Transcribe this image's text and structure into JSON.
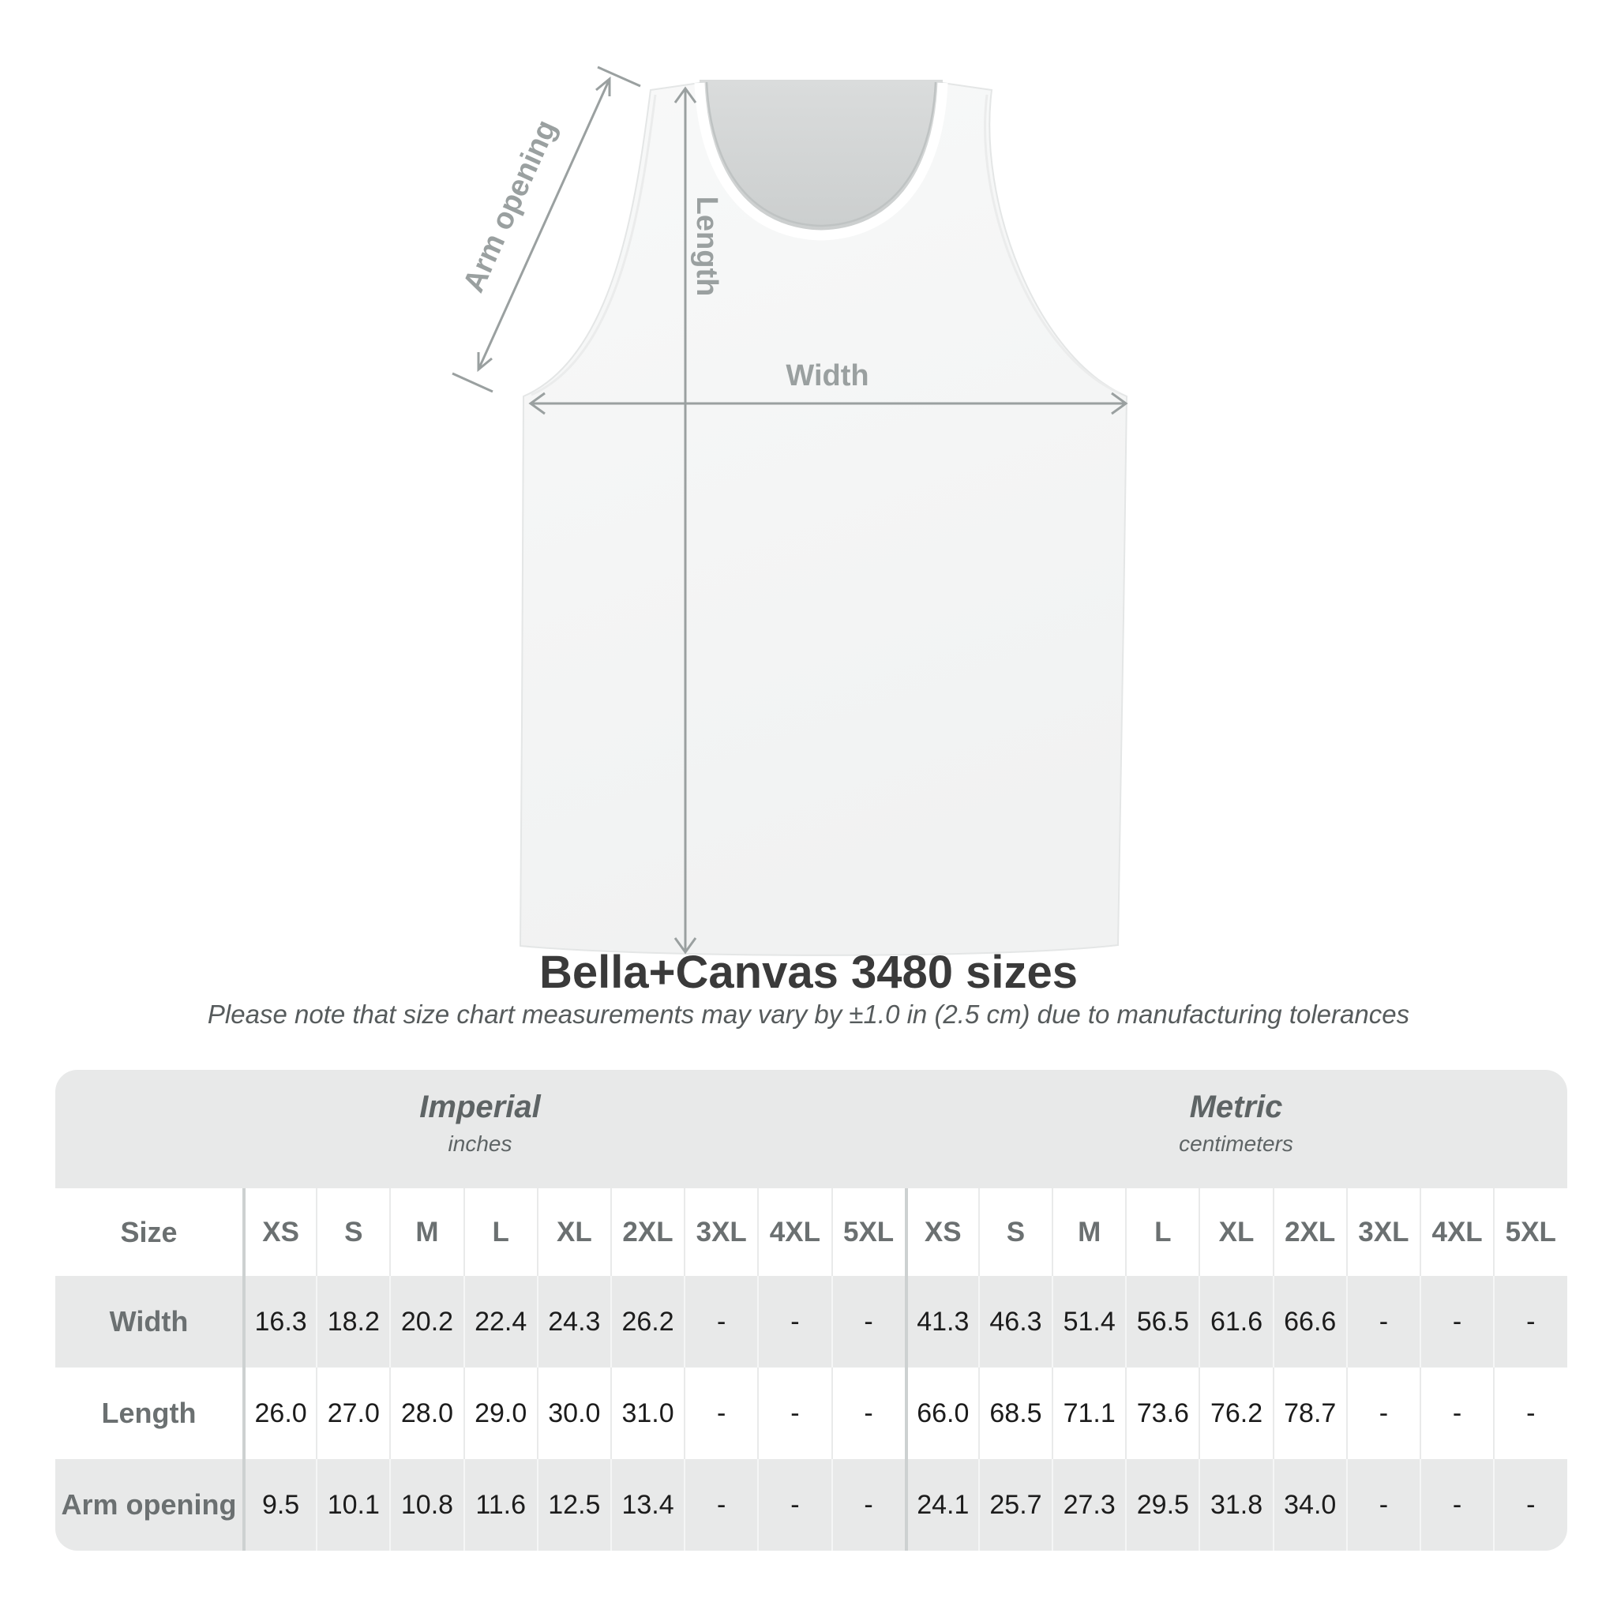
{
  "illustration": {
    "arm_opening_label": "Arm opening",
    "length_label": "Length",
    "width_label": "Width"
  },
  "header": {
    "title": "Bella+Canvas 3480 sizes",
    "subtitle": "Please note that size chart measurements may vary by ±1.0 in (2.5 cm) due to manufacturing tolerances"
  },
  "chart_data": {
    "type": "table",
    "title": "Bella+Canvas 3480 sizes",
    "note": "Please note that size chart measurements may vary by ±1.0 in (2.5 cm) due to manufacturing tolerances",
    "size_header": "Size",
    "unit_groups": [
      {
        "name": "Imperial",
        "unit": "inches"
      },
      {
        "name": "Metric",
        "unit": "centimeters"
      }
    ],
    "sizes": [
      "XS",
      "S",
      "M",
      "L",
      "XL",
      "2XL",
      "3XL",
      "4XL",
      "5XL"
    ],
    "rows": [
      {
        "label": "Width",
        "imperial": [
          "16.3",
          "18.2",
          "20.2",
          "22.4",
          "24.3",
          "26.2",
          "-",
          "-",
          "-"
        ],
        "metric": [
          "41.3",
          "46.3",
          "51.4",
          "56.5",
          "61.6",
          "66.6",
          "-",
          "-",
          "-"
        ]
      },
      {
        "label": "Length",
        "imperial": [
          "26.0",
          "27.0",
          "28.0",
          "29.0",
          "30.0",
          "31.0",
          "-",
          "-",
          "-"
        ],
        "metric": [
          "66.0",
          "68.5",
          "71.1",
          "73.6",
          "76.2",
          "78.7",
          "-",
          "-",
          "-"
        ]
      },
      {
        "label": "Arm opening",
        "imperial": [
          "9.5",
          "10.1",
          "10.8",
          "11.6",
          "12.5",
          "13.4",
          "-",
          "-",
          "-"
        ],
        "metric": [
          "24.1",
          "25.7",
          "27.3",
          "29.5",
          "31.8",
          "34.0",
          "-",
          "-",
          "-"
        ]
      }
    ],
    "legend_position": "none",
    "grid": false
  },
  "colors": {
    "stripe_gray": "#e8e9e9",
    "muted_text": "#6b7071",
    "value_text": "#1c1c1c",
    "arrow_gray": "#9aa0a0",
    "divider_strong": "#cdd1d1",
    "title_text": "#3a3a3a",
    "tank_fabric": "#f6f7f7",
    "tank_inner": "#d5d8d8"
  }
}
